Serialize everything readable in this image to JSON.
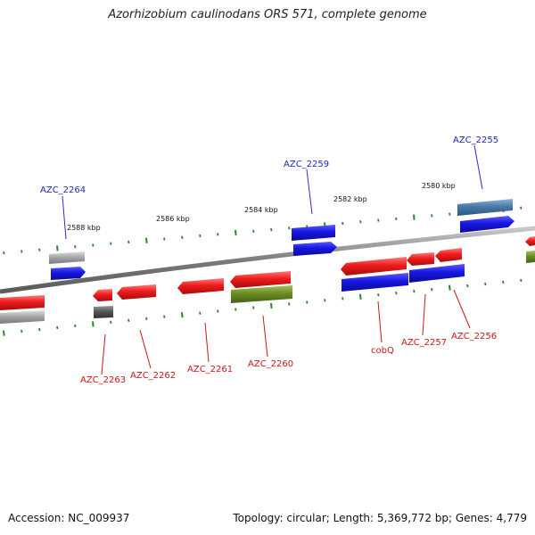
{
  "title": "Azorhizobium caulinodans ORS 571, complete genome",
  "footer": {
    "accession": "Accession: NC_009937",
    "summary": "Topology: circular; Length: 5,369,772 bp; Genes: 4,779"
  },
  "ticks": [
    "2588 kbp",
    "2586 kbp",
    "2584 kbp",
    "2582 kbp",
    "2580 kbp"
  ],
  "gene_labels": {
    "azc_2264": "AZC_2264",
    "azc_2259": "AZC_2259",
    "azc_2255": "AZC_2255",
    "azc_2263": "AZC_2263",
    "azc_2262": "AZC_2262",
    "azc_2261": "AZC_2261",
    "azc_2260": "AZC_2260",
    "cobq": "cobQ",
    "azc_2257": "AZC_2257",
    "azc_2256": "AZC_2256"
  },
  "colors": {
    "backbone": "#8a8a8a",
    "tick": "#2a8a2a",
    "gene_red": "#ee1c1c",
    "gene_blue": "#1717e0",
    "gene_gray": "#a0a0a0",
    "gene_dark": "#555555",
    "gene_olive": "#6b8e23",
    "gene_steel": "#4a7aa8",
    "label_blue": "#1f1fc8",
    "label_red": "#cc1515"
  }
}
